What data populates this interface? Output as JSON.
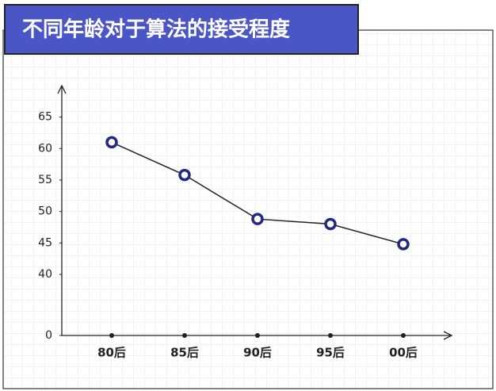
{
  "chart_data": {
    "type": "line",
    "title": "不同年龄对于算法的接受程度",
    "categories": [
      "80后",
      "85后",
      "90后",
      "95后",
      "00后"
    ],
    "values": [
      61,
      55.8,
      48.8,
      48,
      44.8
    ],
    "color": "#1f2a80",
    "ylim": [
      0,
      70
    ],
    "yticks": [
      0,
      40,
      45,
      50,
      55,
      60,
      65
    ],
    "grid": true
  }
}
